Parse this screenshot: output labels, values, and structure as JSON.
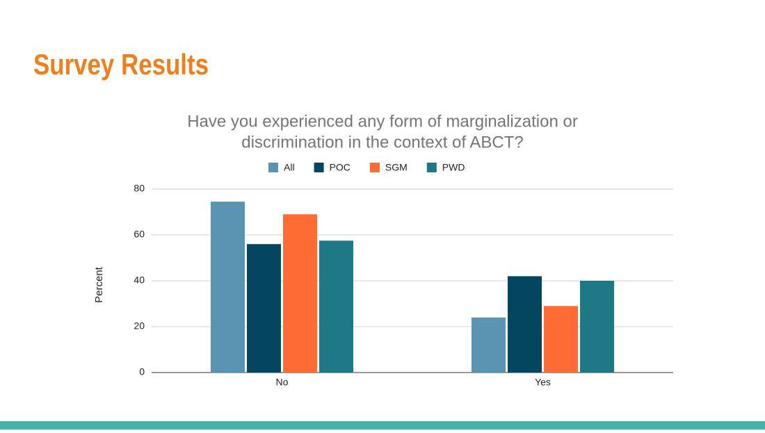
{
  "header": {
    "title": "Survey Results"
  },
  "chart_data": {
    "type": "bar",
    "title": [
      "Have you experienced any form of marginalization or",
      "discrimination in the context of ABCT?"
    ],
    "y_label": "Percent",
    "categories": [
      "No",
      "Yes"
    ],
    "series": [
      {
        "name": "All",
        "color": "#5b93b3",
        "values": [
          74.5,
          24
        ]
      },
      {
        "name": "POC",
        "color": "#04455f",
        "values": [
          56,
          42
        ]
      },
      {
        "name": "SGM",
        "color": "#ff6b35",
        "values": [
          69,
          29
        ]
      },
      {
        "name": "PWD",
        "color": "#1f7886",
        "values": [
          57.5,
          40
        ]
      }
    ],
    "ylim": [
      0,
      80
    ],
    "yticks": [
      0,
      20,
      40,
      60,
      80
    ],
    "grid": true,
    "legend": "top"
  }
}
